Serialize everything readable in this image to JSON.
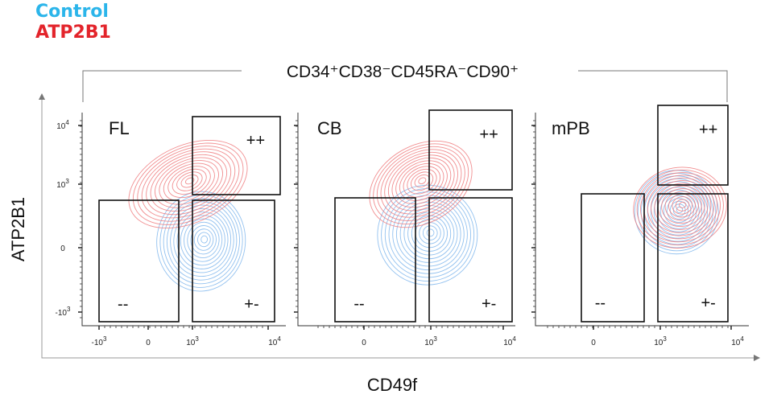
{
  "legend": [
    {
      "label": "Control",
      "color": "#2bb5ea"
    },
    {
      "label": "ATP2B1",
      "color": "#e3242b"
    }
  ],
  "chart_data": {
    "type": "contour",
    "title": "CD34⁺CD38⁻CD45RA⁻CD90⁺",
    "xlabel": "CD49f",
    "ylabel": "ATP2B1",
    "scale": "biexponential",
    "y_ticks": [
      "10^4",
      "10^3",
      "0",
      "-10^3"
    ],
    "series_colors": {
      "Control": "#7fb6ec",
      "ATP2B1": "#ee7a7d"
    },
    "panels": [
      {
        "name": "FL",
        "x_ticks": [
          "-10^3",
          "0",
          "10^3",
          "10^4"
        ],
        "gates": [
          "++",
          "--",
          "+-"
        ],
        "populations": {
          "ATP2B1": {
            "x": 900,
            "y": 1000
          },
          "Control": {
            "x": 1300,
            "y": 100
          }
        }
      },
      {
        "name": "CB",
        "x_ticks": [
          "0",
          "10^3",
          "10^4"
        ],
        "gates": [
          "++",
          "--",
          "+-"
        ],
        "populations": {
          "ATP2B1": {
            "x": 850,
            "y": 1000
          },
          "Control": {
            "x": 950,
            "y": 200
          }
        }
      },
      {
        "name": "mPB",
        "x_ticks": [
          "0",
          "10^3",
          "10^4"
        ],
        "gates": [
          "++",
          "--",
          "+-"
        ],
        "populations": {
          "ATP2B1": {
            "x": 1900,
            "y": 630
          },
          "Control": {
            "x": 1700,
            "y": 560
          }
        }
      }
    ]
  }
}
